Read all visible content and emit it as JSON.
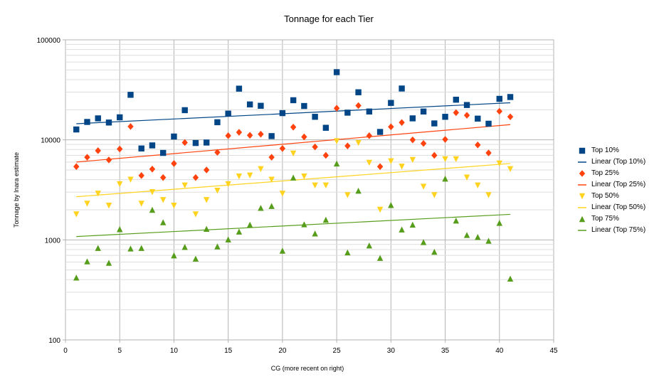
{
  "chart_data": {
    "type": "scatter",
    "title": "Tonnage for each Tier",
    "xlabel": "CG (more recent on right)",
    "ylabel": "Tonnage by Inara estimate",
    "xlim": [
      0,
      45
    ],
    "ylim": [
      100,
      100000
    ],
    "y_scale": "log",
    "grid": true,
    "legend_position": "right",
    "x_ticks": [
      "0",
      "5",
      "10",
      "15",
      "20",
      "25",
      "30",
      "35",
      "40",
      "45"
    ],
    "y_ticks": [
      "100",
      "1000",
      "10000",
      "100000"
    ],
    "x": [
      1,
      2,
      3,
      4,
      5,
      6,
      7,
      8,
      9,
      10,
      11,
      12,
      13,
      14,
      15,
      16,
      17,
      18,
      19,
      20,
      21,
      22,
      23,
      24,
      25,
      26,
      27,
      28,
      29,
      30,
      31,
      32,
      33,
      34,
      35,
      36,
      37,
      38,
      39,
      40,
      41
    ],
    "series": [
      {
        "name": "Top 10%",
        "marker": "square",
        "color": "#004586",
        "values": [
          12700,
          15100,
          16400,
          14900,
          16800,
          28200,
          8200,
          8800,
          7400,
          10800,
          19800,
          9300,
          9400,
          15000,
          18300,
          32500,
          22600,
          21900,
          10900,
          18500,
          24900,
          21800,
          17000,
          13200,
          47500,
          18700,
          29900,
          19200,
          12000,
          23400,
          32600,
          16400,
          19200,
          14600,
          17000,
          25200,
          22300,
          16300,
          14500,
          25700,
          26800
        ],
        "trend": {
          "name": "Linear (Top 10%)",
          "start": 14500,
          "end": 23500
        }
      },
      {
        "name": "Top 25%",
        "marker": "diamond",
        "color": "#ff420e",
        "values": [
          5400,
          6700,
          7800,
          6300,
          8100,
          13600,
          4400,
          5100,
          4200,
          5800,
          9400,
          4200,
          5000,
          7500,
          11000,
          11900,
          11100,
          11400,
          6700,
          8200,
          13400,
          10700,
          8500,
          7000,
          20700,
          8700,
          22000,
          11000,
          5400,
          13500,
          14900,
          10000,
          9200,
          7000,
          10100,
          18700,
          17600,
          8900,
          7400,
          19300,
          17000
        ],
        "trend": {
          "name": "Linear (Top 25%)",
          "start": 6000,
          "end": 14200
        }
      },
      {
        "name": "Top 50%",
        "marker": "triangle-down",
        "color": "#ffd320",
        "values": [
          1800,
          2300,
          2900,
          2200,
          3600,
          4000,
          2300,
          3000,
          2500,
          2200,
          3500,
          1800,
          2500,
          3100,
          3600,
          4300,
          4400,
          5100,
          4000,
          2900,
          7300,
          4300,
          3500,
          3500,
          9700,
          2800,
          9300,
          5900,
          2000,
          6100,
          5400,
          6300,
          3400,
          2800,
          6400,
          6400,
          4200,
          3500,
          2800,
          5800,
          5100
        ],
        "trend": {
          "name": "Linear (Top 50%)",
          "start": 2700,
          "end": 5800
        }
      },
      {
        "name": "Top 75%",
        "marker": "triangle-up",
        "color": "#579d1c",
        "values": [
          420,
          610,
          830,
          590,
          1280,
          820,
          830,
          2000,
          1500,
          700,
          850,
          650,
          1290,
          860,
          1010,
          1210,
          1420,
          2090,
          2180,
          780,
          4200,
          1430,
          1160,
          1590,
          5800,
          750,
          3100,
          880,
          660,
          2230,
          1270,
          1420,
          950,
          760,
          4100,
          1560,
          1120,
          1070,
          980,
          1480,
          410
        ],
        "trend": {
          "name": "Linear (Top 75%)",
          "start": 1080,
          "end": 1800
        }
      }
    ]
  }
}
